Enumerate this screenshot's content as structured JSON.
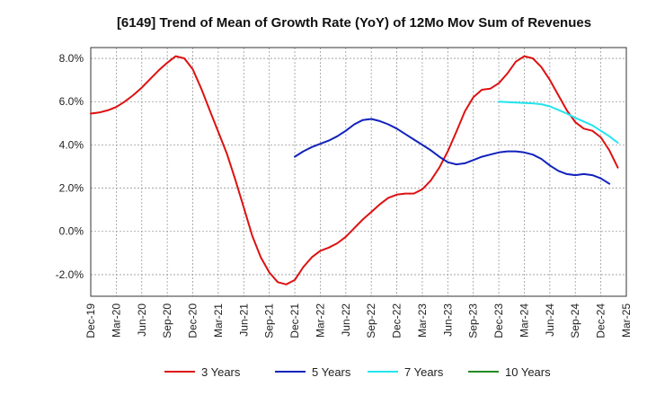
{
  "chart_data": {
    "type": "line",
    "title": "[6149]  Trend of Mean of Growth Rate (YoY) of 12Mo Mov Sum of Revenues",
    "xlabel": "",
    "ylabel": "",
    "ylim": [
      -3.0,
      8.5
    ],
    "grid": true,
    "legend_position": "bottom",
    "x_tick_labels": [
      "Dec-19",
      "Mar-20",
      "Jun-20",
      "Sep-20",
      "Dec-20",
      "Mar-21",
      "Jun-21",
      "Sep-21",
      "Dec-21",
      "Mar-22",
      "Jun-22",
      "Sep-22",
      "Dec-22",
      "Mar-23",
      "Jun-23",
      "Sep-23",
      "Dec-23",
      "Mar-24",
      "Jun-24",
      "Sep-24",
      "Dec-24",
      "Mar-25"
    ],
    "y_ticks": [
      -2.0,
      0.0,
      2.0,
      4.0,
      6.0,
      8.0
    ],
    "y_tick_labels": [
      "-2.0%",
      "0.0%",
      "2.0%",
      "4.0%",
      "6.0%",
      "8.0%"
    ],
    "series": [
      {
        "name": "3 Years",
        "color": "#dd1111",
        "start_index": 0,
        "values": [
          5.45,
          5.5,
          5.6,
          5.75,
          6.0,
          6.3,
          6.65,
          7.05,
          7.45,
          7.8,
          8.1,
          8.0,
          7.5,
          6.6,
          5.6,
          4.6,
          3.6,
          2.4,
          1.1,
          -0.2,
          -1.2,
          -1.9,
          -2.35,
          -2.45,
          -2.25,
          -1.65,
          -1.2,
          -0.9,
          -0.75,
          -0.55,
          -0.25,
          0.15,
          0.55,
          0.9,
          1.25,
          1.55,
          1.7,
          1.75,
          1.75,
          1.95,
          2.35,
          2.95,
          3.7,
          4.6,
          5.55,
          6.2,
          6.55,
          6.6,
          6.85,
          7.3,
          7.85,
          8.1,
          8.0,
          7.6,
          7.0,
          6.3,
          5.6,
          5.05,
          4.75,
          4.65,
          4.35,
          3.75,
          2.95
        ]
      },
      {
        "name": "5 Years",
        "color": "#1122bb",
        "start_index": 24,
        "values": [
          3.45,
          3.7,
          3.9,
          4.05,
          4.2,
          4.4,
          4.65,
          4.95,
          5.15,
          5.2,
          5.1,
          4.95,
          4.75,
          4.5,
          4.25,
          4.0,
          3.75,
          3.45,
          3.2,
          3.1,
          3.15,
          3.3,
          3.45,
          3.55,
          3.65,
          3.7,
          3.7,
          3.65,
          3.55,
          3.35,
          3.05,
          2.8,
          2.65,
          2.6,
          2.65,
          2.6,
          2.45,
          2.2
        ]
      },
      {
        "name": "7 Years",
        "color": "#22e5ee",
        "start_index": 48,
        "values": [
          6.0,
          5.98,
          5.96,
          5.94,
          5.92,
          5.88,
          5.78,
          5.62,
          5.45,
          5.25,
          5.08,
          4.9,
          4.65,
          4.4,
          4.1
        ]
      },
      {
        "name": "10 Years",
        "color": "#228b22",
        "start_index": 0,
        "values": []
      }
    ]
  }
}
